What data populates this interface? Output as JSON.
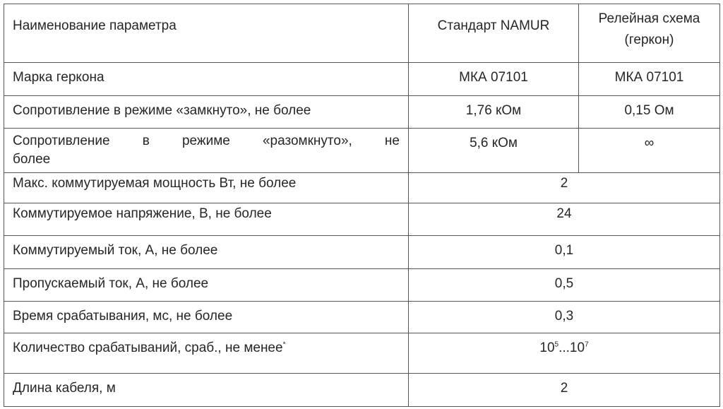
{
  "header": {
    "param": "Наименование параметра",
    "namur": "Стандарт NAMUR",
    "relay_line1": "Релейная схема",
    "relay_line2": "(геркон)"
  },
  "rows": [
    {
      "param": "Марка геркона",
      "namur": "МКА 07101",
      "relay": "МКА 07101"
    },
    {
      "param": "Сопротивление в режиме «замкнуто», не более",
      "namur": "1,76 кОм",
      "relay": "0,15 Ом"
    },
    {
      "param_line1": "Сопротивление в режиме «разомкнуто», не",
      "param_line2": "более",
      "namur": "5,6 кОм",
      "relay": "∞"
    },
    {
      "param": "Макс. коммутируемая мощность Вт, не более",
      "value": "2"
    },
    {
      "param": "Коммутируемое напряжение, В, не более",
      "value": "24"
    },
    {
      "param": "Коммутируемый ток, А, не более",
      "value": "0,1"
    },
    {
      "param": "Пропускаемый ток, А, не более",
      "value": "0,5"
    },
    {
      "param": "Время срабатывания, мс, не более",
      "value": "0,3"
    },
    {
      "param": "Количество срабатываний, сраб., не менее",
      "param_mark": "*",
      "value_base1": "10",
      "value_exp1": "5",
      "value_sep": "...",
      "value_base2": "10",
      "value_exp2": "7"
    },
    {
      "param": "Длина кабеля, м",
      "value": "2"
    }
  ]
}
